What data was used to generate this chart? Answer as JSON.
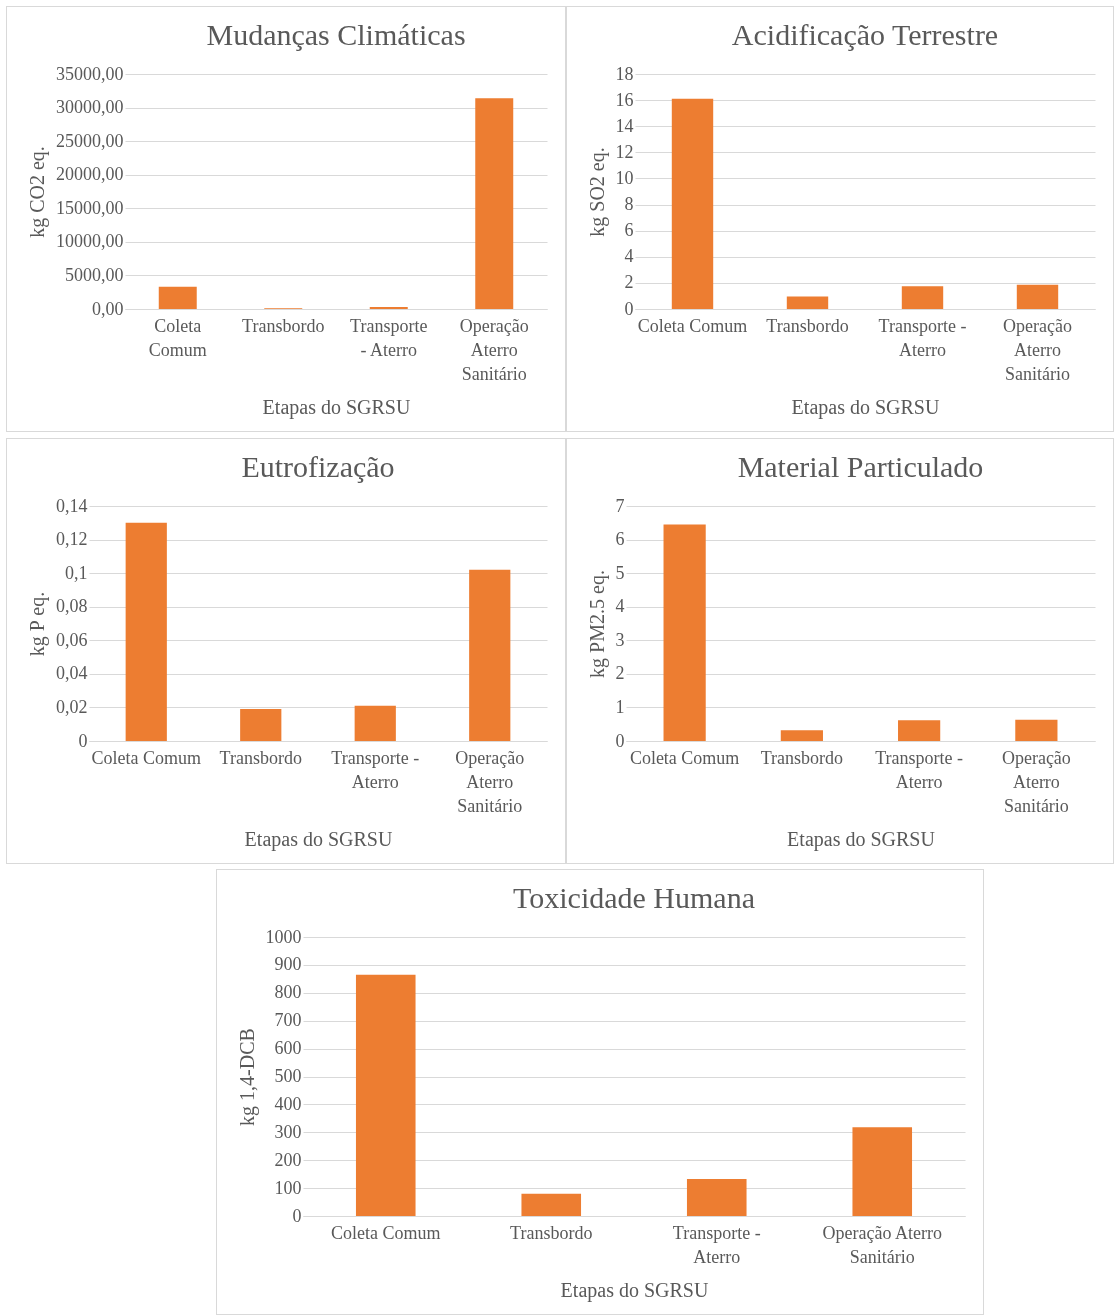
{
  "chart_data": [
    {
      "type": "bar",
      "title": "Mudanças Climáticas",
      "xlabel": "Etapas do SGRSU",
      "ylabel": "kg CO2 eq.",
      "categories": [
        "Coleta Comum",
        "Transbordo",
        "Transporte - Aterro",
        "Operação Aterro Sanitário"
      ],
      "values": [
        3300,
        100,
        300,
        31400
      ],
      "color": "#ed7d31",
      "ylim": [
        0,
        35000
      ],
      "yticks": [
        {
          "value": 0,
          "label": "0,00"
        },
        {
          "value": 5000,
          "label": "5000,00"
        },
        {
          "value": 10000,
          "label": "10000,00"
        },
        {
          "value": 15000,
          "label": "15000,00"
        },
        {
          "value": 20000,
          "label": "20000,00"
        },
        {
          "value": 25000,
          "label": "25000,00"
        },
        {
          "value": 30000,
          "label": "30000,00"
        },
        {
          "value": 35000,
          "label": "35000,00"
        }
      ],
      "grid": "y"
    },
    {
      "type": "bar",
      "title": "Acidificação Terrestre",
      "xlabel": "Etapas do SGRSU",
      "ylabel": "kg SO2 eq.",
      "categories": [
        "Coleta Comum",
        "Transbordo",
        "Transporte - Aterro",
        "Operação Aterro Sanitário"
      ],
      "values": [
        16.1,
        0.95,
        1.75,
        1.85
      ],
      "color": "#ed7d31",
      "ylim": [
        0,
        18
      ],
      "yticks": [
        0,
        2,
        4,
        6,
        8,
        10,
        12,
        14,
        16,
        18
      ],
      "grid": "y"
    },
    {
      "type": "bar",
      "title": "Eutrofização",
      "xlabel": "Etapas do SGRSU",
      "ylabel": "kg P eq.",
      "categories": [
        "Coleta Comum",
        "Transbordo",
        "Transporte - Aterro",
        "Operação Aterro Sanitário"
      ],
      "values": [
        0.13,
        0.019,
        0.021,
        0.102
      ],
      "color": "#ed7d31",
      "ylim": [
        0,
        0.14
      ],
      "yticks": [
        0,
        {
          "value": 0.02,
          "label": "0,02"
        },
        {
          "value": 0.04,
          "label": "0,04"
        },
        {
          "value": 0.06,
          "label": "0,06"
        },
        {
          "value": 0.08,
          "label": "0,08"
        },
        {
          "value": 0.1,
          "label": "0,1"
        },
        {
          "value": 0.12,
          "label": "0,12"
        },
        {
          "value": 0.14,
          "label": "0,14"
        }
      ],
      "grid": "y"
    },
    {
      "type": "bar",
      "title": "Material Particulado",
      "xlabel": "Etapas do SGRSU",
      "ylabel": "kg PM2.5 eq.",
      "categories": [
        "Coleta Comum",
        "Transbordo",
        "Transporte - Aterro",
        "Operação Aterro Sanitário"
      ],
      "values": [
        6.45,
        0.32,
        0.62,
        0.63
      ],
      "color": "#ed7d31",
      "ylim": [
        0,
        7
      ],
      "yticks": [
        0,
        1,
        2,
        3,
        4,
        5,
        6,
        7
      ],
      "grid": "y"
    },
    {
      "type": "bar",
      "title": "Toxicidade Humana",
      "xlabel": "Etapas do SGRSU",
      "ylabel": "kg 1,4-DCB",
      "categories": [
        "Coleta Comum",
        "Transbordo",
        "Transporte - Aterro",
        "Operação Aterro Sanitário"
      ],
      "values": [
        865,
        80,
        133,
        318
      ],
      "color": "#ed7d31",
      "ylim": [
        0,
        1000
      ],
      "yticks": [
        0,
        100,
        200,
        300,
        400,
        500,
        600,
        700,
        800,
        900,
        1000
      ],
      "grid": "y"
    }
  ]
}
